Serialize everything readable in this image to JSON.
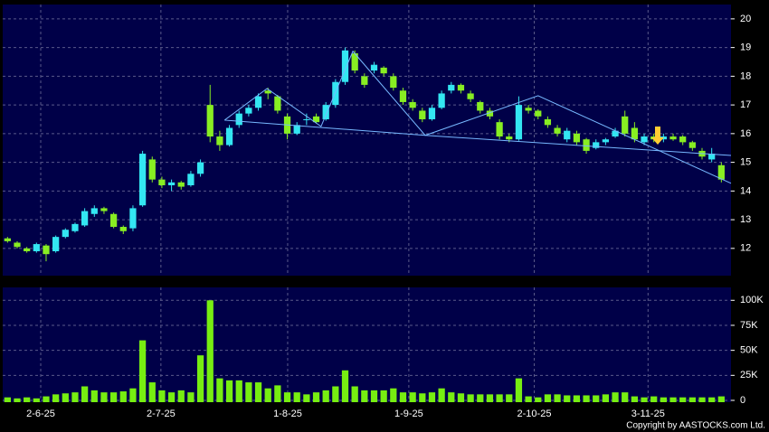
{
  "chart_data": {
    "type": "candlestick",
    "xlim": [
      -0.5,
      75
    ],
    "xticks": [
      {
        "value": 3.44,
        "label": "2-6-25"
      },
      {
        "value": 15.9,
        "label": "2-7-25"
      },
      {
        "value": 29.04,
        "label": "1-8-25"
      },
      {
        "value": 41.6,
        "label": "1-9-25"
      },
      {
        "value": 54.6,
        "label": "2-10-25"
      },
      {
        "value": 66.4,
        "label": "3-11-25"
      }
    ],
    "ylim": [
      11.05,
      20.5
    ],
    "yticks": [
      12,
      13,
      14,
      15,
      16,
      17,
      18,
      19,
      20
    ],
    "grid": true,
    "up_color": "#33e6f2",
    "down_color": "#88ee22",
    "open": [
      12.35,
      12.2,
      12.0,
      11.9,
      12.1,
      11.9,
      12.4,
      12.6,
      12.8,
      13.2,
      13.4,
      13.2,
      12.75,
      12.7,
      13.5,
      15.1,
      14.4,
      14.2,
      14.3,
      14.2,
      14.6,
      17.0,
      15.9,
      15.6,
      16.3,
      16.7,
      16.9,
      17.5,
      17.3,
      16.6,
      16.0,
      16.5,
      16.6,
      16.5,
      17.0,
      17.8,
      18.8,
      18.0,
      18.2,
      18.3,
      18.0,
      17.5,
      17.1,
      16.8,
      16.5,
      16.9,
      17.5,
      17.7,
      17.4,
      17.1,
      16.8,
      16.4,
      15.9,
      15.8,
      16.9,
      16.8,
      16.5,
      16.2,
      15.8,
      16.0,
      15.8,
      15.5,
      15.7,
      15.9,
      16.6,
      16.2,
      15.7,
      15.9,
      15.8,
      15.9,
      15.9,
      15.7,
      15.4,
      15.1,
      14.9
    ],
    "high": [
      12.4,
      12.25,
      12.05,
      12.2,
      12.15,
      12.45,
      12.7,
      12.9,
      13.4,
      13.5,
      13.45,
      13.25,
      12.8,
      13.5,
      15.4,
      15.2,
      14.5,
      14.4,
      14.35,
      14.7,
      15.1,
      17.7,
      16.1,
      16.3,
      16.8,
      17.0,
      17.4,
      17.6,
      17.35,
      16.7,
      16.4,
      16.7,
      16.7,
      17.1,
      17.9,
      19.0,
      18.9,
      18.1,
      18.5,
      18.35,
      18.1,
      17.6,
      17.2,
      16.9,
      17.0,
      17.5,
      17.8,
      17.75,
      17.5,
      17.15,
      16.9,
      16.5,
      16.0,
      17.3,
      17.0,
      16.85,
      16.6,
      16.3,
      16.2,
      16.1,
      15.85,
      15.8,
      15.85,
      16.2,
      16.8,
      16.4,
      16.0,
      16.0,
      16.0,
      16.0,
      15.95,
      15.75,
      15.5,
      15.5,
      15.0
    ],
    "low": [
      12.2,
      12.0,
      11.85,
      11.85,
      11.55,
      11.85,
      12.35,
      12.55,
      12.75,
      13.1,
      13.2,
      12.7,
      12.5,
      12.6,
      13.45,
      14.3,
      14.1,
      14.0,
      14.05,
      14.15,
      14.5,
      15.7,
      15.4,
      15.55,
      16.2,
      16.6,
      16.8,
      17.2,
      16.7,
      15.8,
      15.95,
      16.3,
      16.35,
      16.45,
      16.9,
      17.7,
      18.1,
      17.6,
      18.1,
      18.0,
      17.5,
      17.0,
      16.8,
      16.4,
      16.45,
      16.85,
      17.4,
      17.4,
      17.1,
      16.7,
      16.5,
      15.8,
      15.7,
      15.75,
      16.7,
      16.5,
      16.2,
      15.9,
      15.7,
      15.6,
      15.3,
      15.45,
      15.6,
      15.85,
      15.9,
      15.7,
      15.6,
      15.7,
      15.7,
      15.75,
      15.6,
      15.4,
      15.1,
      15.0,
      14.3
    ],
    "close": [
      12.25,
      12.05,
      11.9,
      12.15,
      11.8,
      12.4,
      12.65,
      12.85,
      13.3,
      13.4,
      13.3,
      12.75,
      12.6,
      13.4,
      15.3,
      14.4,
      14.2,
      14.3,
      14.15,
      14.6,
      15.0,
      15.9,
      15.6,
      16.2,
      16.7,
      16.9,
      17.3,
      17.4,
      16.8,
      16.0,
      16.3,
      16.5,
      16.4,
      17.0,
      17.8,
      18.9,
      18.2,
      17.7,
      18.4,
      18.1,
      17.6,
      17.1,
      16.9,
      16.5,
      16.9,
      17.4,
      17.7,
      17.5,
      17.2,
      16.8,
      16.6,
      15.9,
      15.8,
      17.0,
      16.8,
      16.6,
      16.3,
      16.0,
      16.1,
      15.7,
      15.4,
      15.7,
      15.8,
      16.1,
      16.0,
      15.8,
      15.9,
      15.8,
      15.9,
      15.8,
      15.7,
      15.5,
      15.2,
      15.3,
      14.4
    ],
    "volume": [
      3000,
      2000,
      3000,
      2000,
      4000,
      6000,
      7000,
      8000,
      14000,
      10000,
      8000,
      8000,
      9000,
      12000,
      60000,
      18000,
      10000,
      8000,
      10000,
      8000,
      45000,
      100000,
      22000,
      20000,
      20000,
      18000,
      18000,
      12000,
      15000,
      8000,
      8000,
      6000,
      8000,
      10000,
      14000,
      30000,
      14000,
      10000,
      10000,
      10000,
      12000,
      8000,
      8000,
      7000,
      8000,
      12000,
      8000,
      7000,
      6000,
      6000,
      6000,
      6000,
      6000,
      22000,
      4000,
      3000,
      6000,
      6000,
      5000,
      5000,
      5000,
      5000,
      6000,
      8000,
      8000,
      4000,
      3000,
      4000,
      3000,
      3000,
      3000,
      3000,
      3000,
      3000,
      4000
    ],
    "volume_color": "#77ee11",
    "volume_ylim": [
      0,
      112000
    ],
    "volume_yticks": [
      0,
      {
        "value": 25000,
        "label": "25K"
      },
      {
        "value": 50000,
        "label": "50K"
      },
      {
        "value": 75000,
        "label": "75K"
      },
      {
        "value": 100000,
        "label": "100K"
      }
    ],
    "trend_color": "#77b8ff",
    "trend_lines": [
      {
        "x": [
          22.5,
          26.9,
          32.5,
          35.8,
          43.3,
          55.0,
          75.0
        ],
        "y": [
          16.47,
          17.57,
          16.25,
          18.87,
          15.94,
          17.32,
          14.27
        ]
      },
      {
        "x": [
          22.5,
          43.3,
          75.0
        ],
        "y": [
          16.47,
          15.94,
          15.24
        ]
      }
    ],
    "copyright": "Copyright by AASTOCKS.com Ltd."
  }
}
